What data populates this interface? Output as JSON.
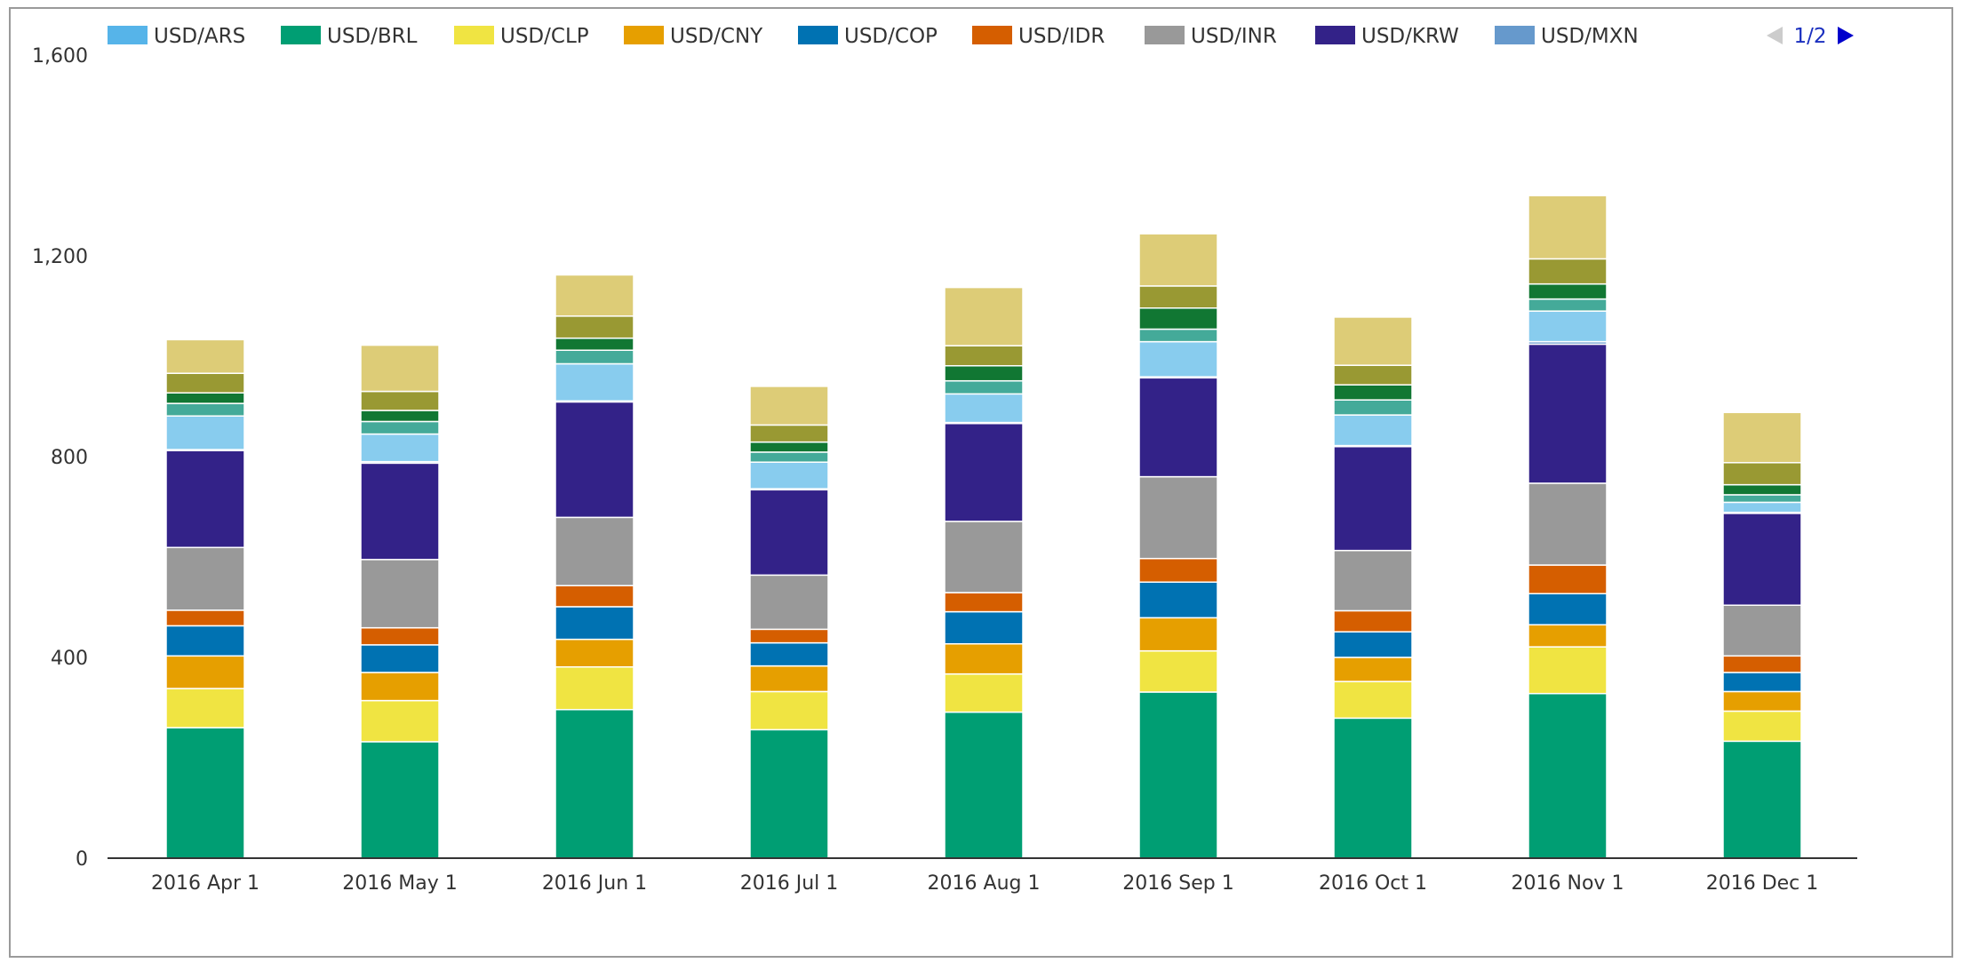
{
  "chart_data": {
    "type": "bar",
    "stacked": true,
    "categories": [
      "2016 Apr 1",
      "2016 May 1",
      "2016 Jun 1",
      "2016 Jul 1",
      "2016 Aug 1",
      "2016 Sep 1",
      "2016 Oct 1",
      "2016 Nov 1",
      "2016 Dec 1"
    ],
    "ylim": [
      0,
      1600
    ],
    "yticks": [
      0,
      400,
      800,
      1200,
      1600
    ],
    "ytick_labels": [
      "0",
      "400",
      "800",
      "1,200",
      "1,600"
    ],
    "grid": false,
    "legend_position": "top",
    "legend_page": "1/2",
    "legend_visible": [
      "USD/ARS",
      "USD/BRL",
      "USD/CLP",
      "USD/CNY",
      "USD/COP",
      "USD/IDR",
      "USD/INR",
      "USD/KRW",
      "USD/MXN"
    ],
    "series": [
      {
        "name": "USD/ARS",
        "color": "#56b4e9",
        "values": [
          0,
          0,
          0,
          0,
          0,
          0,
          0,
          0,
          0
        ]
      },
      {
        "name": "USD/BRL",
        "color": "#009e73",
        "values": [
          260,
          232,
          296,
          256,
          291,
          331,
          279,
          328,
          233
        ]
      },
      {
        "name": "USD/CLP",
        "color": "#f0e442",
        "values": [
          78,
          82,
          85,
          76,
          76,
          82,
          73,
          93,
          60
        ]
      },
      {
        "name": "USD/CNY",
        "color": "#e69f00",
        "values": [
          65,
          56,
          55,
          51,
          60,
          66,
          48,
          44,
          39
        ]
      },
      {
        "name": "USD/COP",
        "color": "#0072b2",
        "values": [
          60,
          55,
          65,
          46,
          64,
          71,
          51,
          62,
          38
        ]
      },
      {
        "name": "USD/IDR",
        "color": "#d55e00",
        "values": [
          31,
          34,
          42,
          27,
          38,
          47,
          42,
          57,
          33
        ]
      },
      {
        "name": "USD/INR",
        "color": "#999999",
        "values": [
          125,
          136,
          136,
          108,
          142,
          163,
          120,
          163,
          101
        ]
      },
      {
        "name": "USD/KRW",
        "color": "#332288",
        "values": [
          193,
          192,
          230,
          170,
          195,
          197,
          207,
          277,
          183
        ]
      },
      {
        "name": "USD/MXN",
        "color": "#6699cc",
        "values": [
          2,
          3,
          2,
          2,
          2,
          2,
          2,
          5,
          2
        ]
      },
      {
        "values": [
          67,
          55,
          74,
          53,
          57,
          70,
          61,
          61,
          20
        ],
        "color": "#88ccee"
      },
      {
        "values": [
          25,
          25,
          27,
          20,
          26,
          25,
          30,
          24,
          15
        ],
        "color": "#44aa99"
      },
      {
        "values": [
          21,
          22,
          24,
          20,
          30,
          42,
          30,
          30,
          20
        ],
        "color": "#117733"
      },
      {
        "values": [
          39,
          38,
          44,
          34,
          40,
          44,
          39,
          50,
          44
        ],
        "color": "#999933"
      },
      {
        "values": [
          67,
          92,
          82,
          77,
          116,
          104,
          96,
          126,
          100
        ],
        "color": "#ddcc77"
      }
    ]
  }
}
